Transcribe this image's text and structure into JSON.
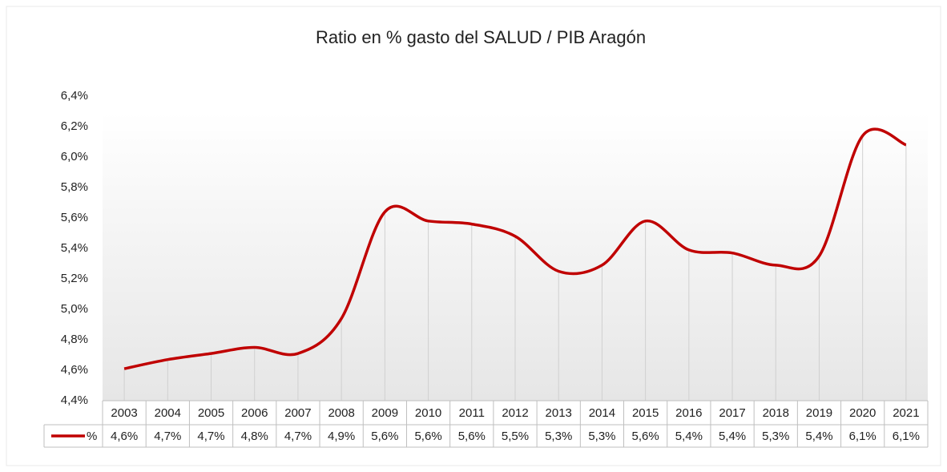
{
  "chart_data": {
    "type": "line",
    "title": "Ratio en % gasto del SALUD / PIB Aragón",
    "categories": [
      "2003",
      "2004",
      "2005",
      "2006",
      "2007",
      "2008",
      "2009",
      "2010",
      "2011",
      "2012",
      "2013",
      "2014",
      "2015",
      "2016",
      "2017",
      "2018",
      "2019",
      "2020",
      "2021"
    ],
    "series": [
      {
        "name": "%",
        "color": "#c00000",
        "values": [
          4.61,
          4.67,
          4.71,
          4.75,
          4.71,
          4.94,
          5.64,
          5.58,
          5.56,
          5.48,
          5.25,
          5.29,
          5.58,
          5.39,
          5.37,
          5.29,
          5.35,
          6.14,
          6.08
        ],
        "value_labels": [
          "4,6%",
          "4,7%",
          "4,7%",
          "4,8%",
          "4,7%",
          "4,9%",
          "5,6%",
          "5,6%",
          "5,6%",
          "5,5%",
          "5,3%",
          "5,3%",
          "5,6%",
          "5,4%",
          "5,4%",
          "5,3%",
          "5,4%",
          "6,1%",
          "6,1%"
        ]
      }
    ],
    "ylim": [
      4.4,
      6.4
    ],
    "yticks": [
      {
        "value": 4.4,
        "label": "4,4%"
      },
      {
        "value": 4.6,
        "label": "4,6%"
      },
      {
        "value": 4.8,
        "label": "4,8%"
      },
      {
        "value": 5.0,
        "label": "5,0%"
      },
      {
        "value": 5.2,
        "label": "5,2%"
      },
      {
        "value": 5.4,
        "label": "5,4%"
      },
      {
        "value": 5.6,
        "label": "5,6%"
      },
      {
        "value": 5.8,
        "label": "5,8%"
      },
      {
        "value": 6.0,
        "label": "6,0%"
      },
      {
        "value": 6.2,
        "label": "6,2%"
      },
      {
        "value": 6.4,
        "label": "6,4%"
      }
    ],
    "data_table": true
  }
}
